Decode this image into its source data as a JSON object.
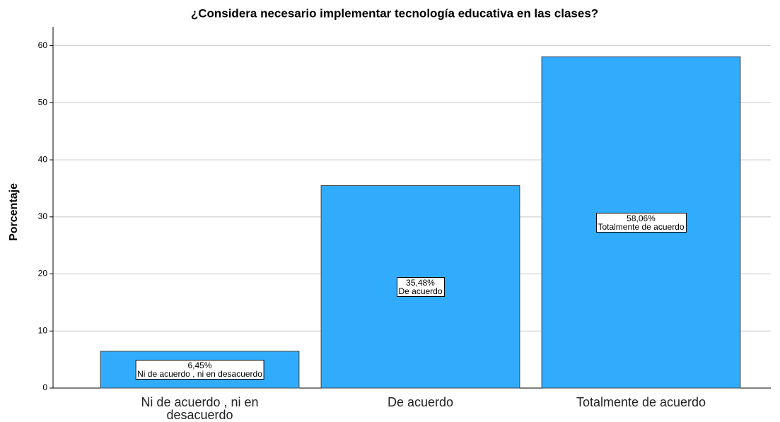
{
  "chart_data": {
    "type": "bar",
    "title": "¿Considera necesario implementar tecnología educativa en las clases?",
    "y_label": "Porcentaje",
    "categories": [
      "Ni de acuerdo , ni en desacuerdo",
      "De acuerdo",
      "Totalmente de acuerdo"
    ],
    "values": [
      6.45,
      35.48,
      58.06
    ],
    "value_labels": [
      "6,45%",
      "35,48%",
      "58,06%"
    ],
    "color": "#31acfc",
    "ylim": [
      0,
      63.3
    ],
    "yticks": [
      0,
      10,
      20,
      30,
      40,
      50,
      60
    ],
    "grid": true
  }
}
